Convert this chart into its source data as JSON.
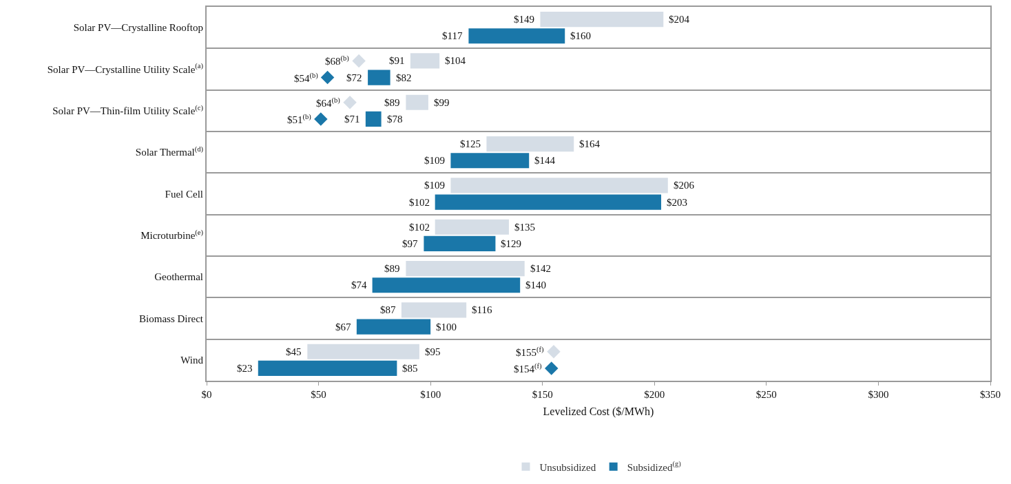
{
  "chart_data": {
    "type": "bar",
    "orientation": "horizontal",
    "xlabel": "Levelized Cost ($/MWh)",
    "categories": [
      "Solar PV—Crystalline Rooftop",
      "Solar PV—Crystalline Utility Scale$^{(a)}$",
      "Solar PV—Thin-film Utility Scale$^{(c)}$",
      "Solar Thermal$^{(d)}$",
      "Fuel Cell",
      "Microturbine$^{(e)}$",
      "Geothermal",
      "Biomass Direct",
      "Wind"
    ],
    "series": [
      {
        "name": "Unsubsidized",
        "color": "#d5dde6",
        "base": [
          149,
          91,
          89,
          125,
          109,
          102,
          89,
          87,
          45
        ],
        "values": [
          55,
          13,
          10,
          39,
          97,
          33,
          53,
          29,
          50
        ]
      },
      {
        "name": "Subsidized$^{(g)}$",
        "color": "#1a77a9",
        "base": [
          117,
          72,
          71,
          109,
          102,
          97,
          74,
          67,
          23
        ],
        "values": [
          43,
          10,
          7,
          35,
          101,
          32,
          66,
          33,
          62
        ]
      },
      {
        "type": "scatter",
        "marker": "diamond",
        "color": "#d5dde6",
        "values": [
          null,
          68,
          64,
          null,
          null,
          null,
          null,
          null,
          155
        ]
      },
      {
        "type": "scatter",
        "marker": "diamond",
        "color": "#1a77a9",
        "values": [
          null,
          54,
          51,
          null,
          null,
          null,
          null,
          null,
          154
        ]
      }
    ],
    "xlim": [
      0,
      350
    ],
    "xticks": [
      {
        "value": 0,
        "label": "$0"
      },
      {
        "value": 50,
        "label": "$50"
      },
      {
        "value": 100,
        "label": "$100"
      },
      {
        "value": 150,
        "label": "$150"
      },
      {
        "value": 200,
        "label": "$200"
      },
      {
        "value": 250,
        "label": "$250"
      },
      {
        "value": 300,
        "label": "$300"
      },
      {
        "value": 350,
        "label": "$350"
      }
    ],
    "grid": "y",
    "legend": "bottom",
    "annotations": [
      {
        "text": "$149",
        "x": 149,
        "y": "Solar PV—Crystalline Rooftop"
      },
      {
        "text": "$204",
        "x": 204,
        "y": "Solar PV—Crystalline Rooftop"
      },
      {
        "text": "$117",
        "x": 117,
        "y": "Solar PV—Crystalline Rooftop"
      },
      {
        "text": "$160",
        "x": 160,
        "y": "Solar PV—Crystalline Rooftop"
      },
      {
        "text": "$91",
        "x": 91,
        "y": "Solar PV—Crystalline Utility Scale$^{(a)}$"
      },
      {
        "text": "$104",
        "x": 104,
        "y": "Solar PV—Crystalline Utility Scale$^{(a)}$"
      },
      {
        "text": "$72",
        "x": 72,
        "y": "Solar PV—Crystalline Utility Scale$^{(a)}$"
      },
      {
        "text": "$82",
        "x": 82,
        "y": "Solar PV—Crystalline Utility Scale$^{(a)}$"
      },
      {
        "text": "$68$^{(b)}$",
        "x": 68,
        "y": "Solar PV—Crystalline Utility Scale$^{(a)}$"
      },
      {
        "text": "$54$^{(b)}$",
        "x": 54,
        "y": "Solar PV—Crystalline Utility Scale$^{(a)}$"
      },
      {
        "text": "$89",
        "x": 89,
        "y": "Solar PV—Thin-film Utility Scale$^{(c)}$"
      },
      {
        "text": "$99",
        "x": 99,
        "y": "Solar PV—Thin-film Utility Scale$^{(c)}$"
      },
      {
        "text": "$71",
        "x": 71,
        "y": "Solar PV—Thin-film Utility Scale$^{(c)}$"
      },
      {
        "text": "$78",
        "x": 78,
        "y": "Solar PV—Thin-film Utility Scale$^{(c)}$"
      },
      {
        "text": "$64$^{(b)}$",
        "x": 64,
        "y": "Solar PV—Thin-film Utility Scale$^{(c)}$"
      },
      {
        "text": "$51$^{(b)}$",
        "x": 51,
        "y": "Solar PV—Thin-film Utility Scale$^{(c)}$"
      },
      {
        "text": "$125",
        "x": 125,
        "y": "Solar Thermal$^{(d)}$"
      },
      {
        "text": "$164",
        "x": 164,
        "y": "Solar Thermal$^{(d)}$"
      },
      {
        "text": "$109",
        "x": 109,
        "y": "Solar Thermal$^{(d)}$"
      },
      {
        "text": "$144",
        "x": 144,
        "y": "Solar Thermal$^{(d)}$"
      },
      {
        "text": "$109",
        "x": 109,
        "y": "Fuel Cell"
      },
      {
        "text": "$206",
        "x": 206,
        "y": "Fuel Cell"
      },
      {
        "text": "$102",
        "x": 102,
        "y": "Fuel Cell"
      },
      {
        "text": "$203",
        "x": 203,
        "y": "Fuel Cell"
      },
      {
        "text": "$102",
        "x": 102,
        "y": "Microturbine$^{(e)}$"
      },
      {
        "text": "$135",
        "x": 135,
        "y": "Microturbine$^{(e)}$"
      },
      {
        "text": "$97",
        "x": 97,
        "y": "Microturbine$^{(e)}$"
      },
      {
        "text": "$129",
        "x": 129,
        "y": "Microturbine$^{(e)}$"
      },
      {
        "text": "$89",
        "x": 89,
        "y": "Geothermal"
      },
      {
        "text": "$142",
        "x": 142,
        "y": "Geothermal"
      },
      {
        "text": "$74",
        "x": 74,
        "y": "Geothermal"
      },
      {
        "text": "$140",
        "x": 140,
        "y": "Geothermal"
      },
      {
        "text": "$87",
        "x": 87,
        "y": "Biomass Direct"
      },
      {
        "text": "$116",
        "x": 116,
        "y": "Biomass Direct"
      },
      {
        "text": "$67",
        "x": 67,
        "y": "Biomass Direct"
      },
      {
        "text": "$100",
        "x": 100,
        "y": "Biomass Direct"
      },
      {
        "text": "$45",
        "x": 45,
        "y": "Wind"
      },
      {
        "text": "$95",
        "x": 95,
        "y": "Wind"
      },
      {
        "text": "$23",
        "x": 23,
        "y": "Wind"
      },
      {
        "text": "$85",
        "x": 85,
        "y": "Wind"
      },
      {
        "text": "$155$^{(f)}$",
        "x": 155,
        "y": "Wind"
      },
      {
        "text": "$154$^{(f)}$",
        "x": 154,
        "y": "Wind"
      }
    ]
  }
}
